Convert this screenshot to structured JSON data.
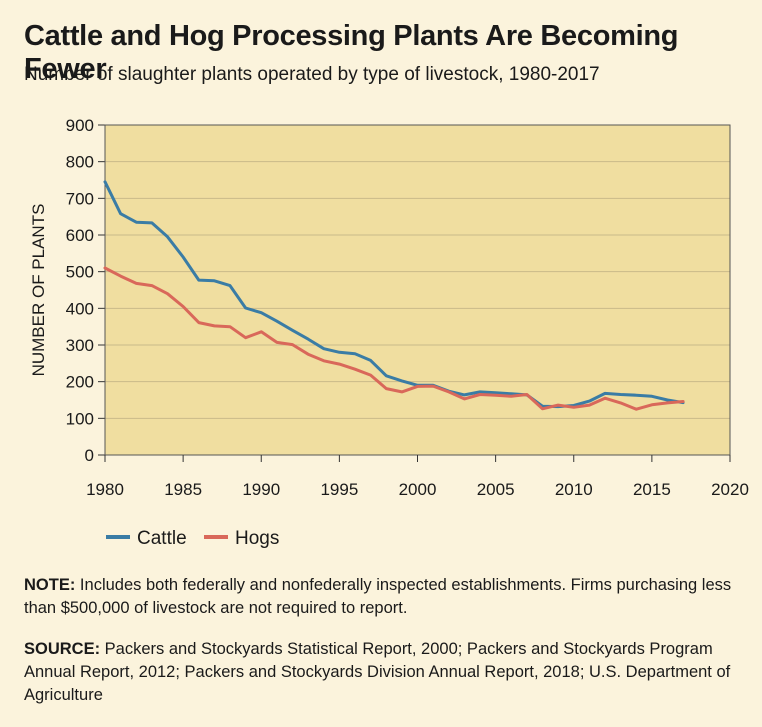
{
  "title": "Cattle and Hog Processing Plants Are Becoming Fewer",
  "subtitle": "Number of slaughter plants operated by type of livestock, 1980-2017",
  "note_label": "NOTE:",
  "note_text": " Includes both federally and nonfederally inspected establishments. Firms purchasing less than $500,000 of livestock are not required to report.",
  "source_label": "SOURCE:",
  "source_text": " Packers and Stockyards Statistical Report, 2000; Packers and Stockyards Program Annual Report, 2012; Packers and Stockyards Division Annual Report, 2018; U.S. Department of Agriculture",
  "colors": {
    "plot_bg": "#f0dea0",
    "grid": "#c9b98a",
    "cattle": "#3a7ca5",
    "hogs": "#d9685a",
    "panel_bg": "#fbf3dc"
  },
  "chart_data": {
    "type": "line",
    "xlabel": "",
    "ylabel": "NUMBER OF PLANTS",
    "xlim": [
      1980,
      2020
    ],
    "ylim": [
      0,
      900
    ],
    "xticks": [
      "1980",
      "1985",
      "1990",
      "1995",
      "2000",
      "2005",
      "2010",
      "2015",
      "2020"
    ],
    "yticks": [
      "0",
      "100",
      "200",
      "300",
      "400",
      "500",
      "600",
      "700",
      "800",
      "900"
    ],
    "grid": "horizontal",
    "legend_position": "bottom-left",
    "x": [
      1980,
      1981,
      1982,
      1983,
      1984,
      1985,
      1986,
      1987,
      1988,
      1989,
      1990,
      1991,
      1992,
      1993,
      1994,
      1995,
      1996,
      1997,
      1998,
      1999,
      2000,
      2001,
      2002,
      2003,
      2004,
      2005,
      2006,
      2007,
      2008,
      2009,
      2010,
      2011,
      2012,
      2013,
      2014,
      2015,
      2016,
      2017
    ],
    "series": [
      {
        "name": "Cattle",
        "values": [
          745,
          658,
          635,
          633,
          595,
          540,
          477,
          475,
          462,
          401,
          388,
          365,
          340,
          316,
          290,
          280,
          276,
          258,
          216,
          202,
          190,
          190,
          174,
          164,
          172,
          170,
          167,
          164,
          133,
          132,
          135,
          147,
          168,
          165,
          163,
          160,
          150,
          143
        ]
      },
      {
        "name": "Hogs",
        "values": [
          510,
          488,
          468,
          462,
          440,
          405,
          361,
          352,
          350,
          320,
          336,
          307,
          301,
          275,
          257,
          248,
          234,
          218,
          181,
          172,
          187,
          188,
          172,
          153,
          165,
          163,
          160,
          165,
          126,
          136,
          130,
          136,
          155,
          142,
          125,
          137,
          142,
          146
        ]
      }
    ]
  }
}
